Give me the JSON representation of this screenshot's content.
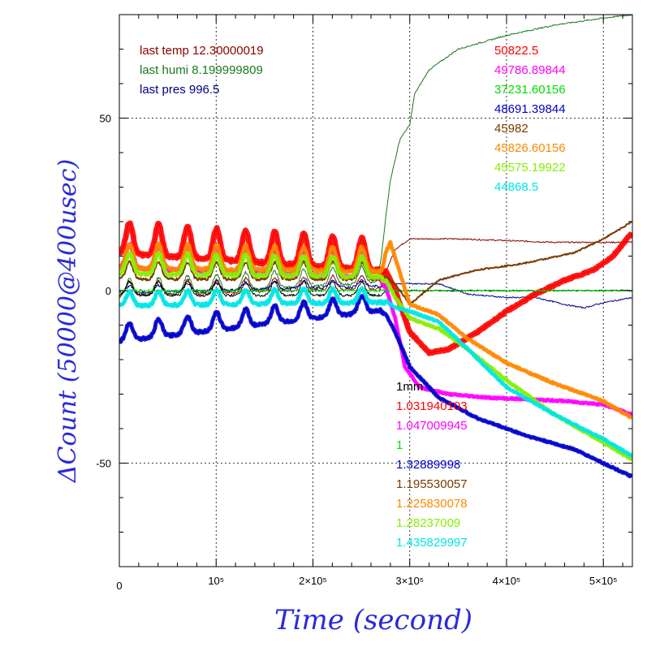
{
  "chart_data": {
    "type": "line",
    "xlabel": "Time (second)",
    "ylabel": "ΔCount (50000@400usec)",
    "xlim": [
      0,
      530000
    ],
    "ylim": [
      -80,
      80
    ],
    "grid": true,
    "x_ticks": [
      {
        "value": 0,
        "label": "0"
      },
      {
        "value": 100000,
        "label": "10⁵"
      },
      {
        "value": 200000,
        "label": "2×10⁵"
      },
      {
        "value": 300000,
        "label": "3×10⁵"
      },
      {
        "value": 400000,
        "label": "4×10⁵"
      },
      {
        "value": 500000,
        "label": "5×10⁵"
      }
    ],
    "y_ticks": [
      {
        "value": 50,
        "label": "50"
      },
      {
        "value": 0,
        "label": "0"
      },
      {
        "value": -50,
        "label": "-50"
      }
    ],
    "env_labels": [
      {
        "text": "last temp 12.30000019",
        "color": "#8b0000"
      },
      {
        "text": "last humi 8.199999809",
        "color": "#1a7a1a"
      },
      {
        "text": "last pres 996.5",
        "color": "#000080"
      }
    ],
    "count_labels": [
      {
        "text": "50822.5",
        "color": "#ff0000"
      },
      {
        "text": "49786.89844",
        "color": "#ff00ff"
      },
      {
        "text": "37231.60156",
        "color": "#00dd00"
      },
      {
        "text": "48691.39844",
        "color": "#0000cc"
      },
      {
        "text": "45982",
        "color": "#7a3a00"
      },
      {
        "text": "45826.60156",
        "color": "#ff8800"
      },
      {
        "text": "45575.19922",
        "color": "#88ee00"
      },
      {
        "text": "44868.5",
        "color": "#00e5e5"
      }
    ],
    "scale_labels": [
      {
        "text": "1mm",
        "color": "#000000"
      },
      {
        "text": "1.031940103",
        "color": "#ff0000"
      },
      {
        "text": "1.047009945",
        "color": "#ff00ff"
      },
      {
        "text": "1",
        "color": "#00dd00"
      },
      {
        "text": "1.32889998",
        "color": "#0000cc"
      },
      {
        "text": "1.195530057",
        "color": "#7a3a00"
      },
      {
        "text": "1.225830078",
        "color": "#ff8800"
      },
      {
        "text": "1.28237009",
        "color": "#88ee00"
      },
      {
        "text": "1.435829997",
        "color": "#00e5e5"
      }
    ],
    "series": [
      {
        "color": "#8b0000",
        "width": 1,
        "band": 0,
        "base": [
          [
            0,
            0
          ],
          [
            270000,
            2
          ],
          [
            285000,
            12
          ],
          [
            300000,
            15
          ],
          [
            350000,
            15
          ],
          [
            400000,
            14.5
          ],
          [
            450000,
            14
          ],
          [
            530000,
            14
          ]
        ],
        "osc_amp": 4
      },
      {
        "color": "#1a7a1a",
        "width": 1,
        "band": 0,
        "base": [
          [
            0,
            0
          ],
          [
            265000,
            4
          ],
          [
            270000,
            10
          ],
          [
            280000,
            32
          ],
          [
            290000,
            44
          ],
          [
            300000,
            48
          ],
          [
            305000,
            57
          ],
          [
            320000,
            64
          ],
          [
            350000,
            70
          ],
          [
            400000,
            74
          ],
          [
            450000,
            77
          ],
          [
            500000,
            79
          ],
          [
            530000,
            80
          ]
        ],
        "osc_amp": 5
      },
      {
        "color": "#000080",
        "width": 1,
        "band": 0,
        "base": [
          [
            0,
            0
          ],
          [
            270000,
            2
          ],
          [
            300000,
            2
          ],
          [
            330000,
            2
          ],
          [
            360000,
            -1
          ],
          [
            400000,
            -2
          ],
          [
            430000,
            -2
          ],
          [
            460000,
            -4
          ],
          [
            480000,
            -5
          ],
          [
            500000,
            -3.5
          ],
          [
            530000,
            -2
          ]
        ],
        "osc_amp": 2
      },
      {
        "color": "#000000",
        "width": 1,
        "band": 0,
        "base": [
          [
            0,
            0
          ],
          [
            270000,
            0
          ],
          [
            530000,
            0
          ]
        ],
        "osc_amp": 4
      },
      {
        "color": "#ff0000",
        "width": 1.5,
        "band": 7,
        "base": [
          [
            0,
            14
          ],
          [
            270000,
            9
          ],
          [
            285000,
            0
          ],
          [
            300000,
            -12
          ],
          [
            320000,
            -18
          ],
          [
            340000,
            -17
          ],
          [
            370000,
            -12
          ],
          [
            400000,
            -6
          ],
          [
            430000,
            -1
          ],
          [
            460000,
            3
          ],
          [
            490000,
            6
          ],
          [
            510000,
            10
          ],
          [
            530000,
            17
          ]
        ],
        "osc_amp": 9
      },
      {
        "color": "#ff00ff",
        "width": 1.5,
        "band": 5,
        "base": [
          [
            0,
            9
          ],
          [
            270000,
            6
          ],
          [
            285000,
            -8
          ],
          [
            295000,
            -22
          ],
          [
            310000,
            -28
          ],
          [
            340000,
            -30
          ],
          [
            380000,
            -31
          ],
          [
            420000,
            -31.5
          ],
          [
            460000,
            -32
          ],
          [
            500000,
            -33
          ],
          [
            530000,
            -36
          ]
        ],
        "osc_amp": 7
      },
      {
        "color": "#00dd00",
        "width": 1,
        "band": 0,
        "base": [
          [
            0,
            0
          ],
          [
            530000,
            0
          ]
        ],
        "osc_amp": 0
      },
      {
        "color": "#0000cc",
        "width": 1.5,
        "band": 5,
        "base": [
          [
            0,
            -13
          ],
          [
            270000,
            -4
          ],
          [
            285000,
            -12
          ],
          [
            300000,
            -22
          ],
          [
            330000,
            -31
          ],
          [
            370000,
            -37
          ],
          [
            420000,
            -42
          ],
          [
            470000,
            -46
          ],
          [
            500000,
            -50
          ],
          [
            530000,
            -54
          ]
        ],
        "osc_amp": 5
      },
      {
        "color": "#7a3a00",
        "width": 2,
        "band": 0,
        "base": [
          [
            0,
            5
          ],
          [
            270000,
            5
          ],
          [
            285000,
            2
          ],
          [
            300000,
            -4
          ],
          [
            330000,
            3
          ],
          [
            370000,
            6
          ],
          [
            420000,
            8
          ],
          [
            470000,
            11
          ],
          [
            500000,
            15
          ],
          [
            530000,
            20
          ]
        ],
        "osc_amp": 5
      },
      {
        "color": "#ff8800",
        "width": 1.5,
        "band": 5,
        "base": [
          [
            0,
            9
          ],
          [
            270000,
            8
          ],
          [
            280000,
            14
          ],
          [
            300000,
            -4
          ],
          [
            330000,
            -7
          ],
          [
            360000,
            -14
          ],
          [
            400000,
            -21
          ],
          [
            450000,
            -27
          ],
          [
            500000,
            -32
          ],
          [
            530000,
            -37
          ]
        ],
        "osc_amp": 7
      },
      {
        "color": "#88ee00",
        "width": 1.5,
        "band": 5,
        "base": [
          [
            0,
            7
          ],
          [
            270000,
            6
          ],
          [
            285000,
            -2
          ],
          [
            300000,
            -8
          ],
          [
            330000,
            -11
          ],
          [
            360000,
            -17
          ],
          [
            400000,
            -26
          ],
          [
            450000,
            -36
          ],
          [
            500000,
            -44
          ],
          [
            530000,
            -49
          ]
        ],
        "osc_amp": 6
      },
      {
        "color": "#00e5e5",
        "width": 1.5,
        "band": 5,
        "base": [
          [
            0,
            -3
          ],
          [
            270000,
            -2
          ],
          [
            285000,
            -5
          ],
          [
            300000,
            -6
          ],
          [
            330000,
            -9
          ],
          [
            360000,
            -17
          ],
          [
            400000,
            -28
          ],
          [
            450000,
            -36
          ],
          [
            500000,
            -43
          ],
          [
            530000,
            -48
          ]
        ],
        "osc_amp": 4
      }
    ]
  }
}
